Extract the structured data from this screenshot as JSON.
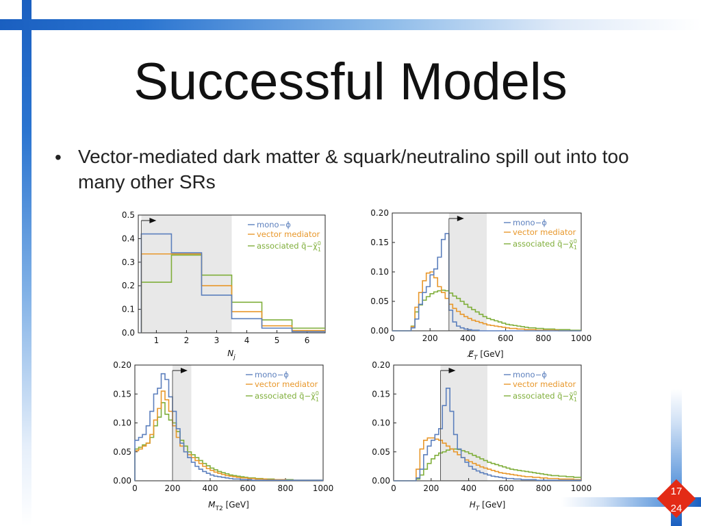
{
  "slide": {
    "title": "Successful Models",
    "bullet": "Vector-mediated dark matter & squark/neutralino spill out into too many other SRs",
    "page_number": "17",
    "page_total": "24"
  },
  "colors": {
    "mono_phi": "#5b7fbd",
    "vector": "#e8972a",
    "associated": "#7fae3a",
    "region": "#e8e8e8"
  },
  "legend": {
    "mono_phi": "mono−ϕ",
    "vector": "vector mediator",
    "associated": "associated q̃−χ̃"
  },
  "chart_data": [
    {
      "type": "line",
      "step": true,
      "xlabel": "N_j",
      "xlim": [
        0.4,
        6.6
      ],
      "ylim": [
        0,
        0.5
      ],
      "xticks": [
        1,
        2,
        3,
        4,
        5,
        6
      ],
      "yticks": [
        "0.0",
        "0.1",
        "0.2",
        "0.3",
        "0.4",
        "0.5"
      ],
      "xtick_labels": [
        "1",
        "2",
        "3",
        "4",
        "5",
        "6"
      ],
      "shaded_region": [
        0.5,
        3.5
      ],
      "cut_marker": 0.5,
      "edges": [
        0.5,
        1.5,
        2.5,
        3.5,
        4.5,
        5.5,
        6.6
      ],
      "series": [
        {
          "name": "mono−ϕ",
          "values": [
            0.42,
            0.34,
            0.16,
            0.06,
            0.02,
            0.005
          ]
        },
        {
          "name": "vector mediator",
          "values": [
            0.335,
            0.335,
            0.2,
            0.09,
            0.03,
            0.01
          ]
        },
        {
          "name": "associated q̃−χ̃",
          "values": [
            0.215,
            0.33,
            0.245,
            0.13,
            0.055,
            0.02
          ]
        }
      ]
    },
    {
      "type": "line",
      "step": true,
      "xlabel": "E_T [GeV]",
      "xlim": [
        0,
        1000
      ],
      "ylim": [
        0,
        0.2
      ],
      "xticks": [
        0,
        200,
        400,
        600,
        800,
        1000
      ],
      "yticks": [
        "0.00",
        "0.05",
        "0.10",
        "0.15",
        "0.20"
      ],
      "xtick_labels": [
        "0",
        "200",
        "400",
        "600",
        "800",
        "1000"
      ],
      "shaded_region": [
        300,
        500
      ],
      "cut_marker": 300,
      "edge_start": 0,
      "bin_width": 20,
      "series": [
        {
          "name": "mono−ϕ",
          "values": [
            0,
            0,
            0,
            0,
            0,
            0.005,
            0.02,
            0.045,
            0.065,
            0.075,
            0.095,
            0.105,
            0.125,
            0.155,
            0.165,
            0.035,
            0.015,
            0.008,
            0.005,
            0.003,
            0.002,
            0.001,
            0.001,
            0,
            0,
            0,
            0,
            0,
            0,
            0,
            0,
            0,
            0,
            0,
            0,
            0,
            0,
            0,
            0,
            0,
            0,
            0,
            0,
            0,
            0,
            0,
            0,
            0,
            0,
            0
          ]
        },
        {
          "name": "vector mediator",
          "values": [
            0,
            0,
            0,
            0,
            0,
            0.007,
            0.04,
            0.065,
            0.085,
            0.098,
            0.1,
            0.09,
            0.075,
            0.065,
            0.055,
            0.045,
            0.038,
            0.033,
            0.028,
            0.024,
            0.021,
            0.018,
            0.016,
            0.014,
            0.012,
            0.01,
            0.009,
            0.008,
            0.007,
            0.006,
            0.005,
            0.004,
            0.004,
            0.003,
            0.003,
            0.002,
            0.002,
            0.002,
            0.001,
            0.001,
            0.001,
            0.001,
            0.001,
            0.001,
            0,
            0,
            0,
            0,
            0,
            0
          ]
        },
        {
          "name": "associated q̃−χ̃",
          "values": [
            0,
            0,
            0,
            0,
            0,
            0.008,
            0.032,
            0.044,
            0.052,
            0.058,
            0.063,
            0.066,
            0.068,
            0.069,
            0.068,
            0.064,
            0.059,
            0.055,
            0.05,
            0.045,
            0.04,
            0.036,
            0.032,
            0.028,
            0.024,
            0.021,
            0.019,
            0.017,
            0.015,
            0.013,
            0.011,
            0.01,
            0.009,
            0.008,
            0.007,
            0.006,
            0.005,
            0.005,
            0.004,
            0.004,
            0.003,
            0.003,
            0.003,
            0.002,
            0.002,
            0.002,
            0.002,
            0.001,
            0.001,
            0.001
          ]
        }
      ]
    },
    {
      "type": "line",
      "step": true,
      "xlabel": "M_T2 [GeV]",
      "xlim": [
        0,
        1000
      ],
      "ylim": [
        0,
        0.2
      ],
      "xticks": [
        0,
        200,
        400,
        600,
        800,
        1000
      ],
      "yticks": [
        "0.00",
        "0.05",
        "0.10",
        "0.15",
        "0.20"
      ],
      "xtick_labels": [
        "0",
        "200",
        "400",
        "600",
        "800",
        "1000"
      ],
      "shaded_region": [
        200,
        300
      ],
      "cut_marker": 200,
      "edge_start": 0,
      "bin_width": 20,
      "series": [
        {
          "name": "mono−ϕ",
          "values": [
            0.07,
            0.075,
            0.08,
            0.095,
            0.12,
            0.15,
            0.16,
            0.185,
            0.175,
            0.145,
            0.12,
            0.09,
            0.065,
            0.05,
            0.04,
            0.032,
            0.025,
            0.02,
            0.016,
            0.013,
            0.01,
            0.008,
            0.007,
            0.006,
            0.005,
            0.004,
            0.003,
            0.003,
            0.002,
            0.002,
            0.002,
            0.001,
            0.001,
            0.001,
            0.001,
            0.001,
            0.001,
            0.001,
            0.001,
            0.001,
            0.001,
            0.001,
            0.001,
            0.001,
            0.001,
            0.001,
            0.001,
            0.001,
            0.001,
            0.001
          ]
        },
        {
          "name": "vector mediator",
          "values": [
            0.052,
            0.055,
            0.06,
            0.065,
            0.08,
            0.105,
            0.125,
            0.155,
            0.14,
            0.12,
            0.095,
            0.075,
            0.06,
            0.05,
            0.045,
            0.04,
            0.035,
            0.03,
            0.025,
            0.021,
            0.018,
            0.015,
            0.013,
            0.011,
            0.009,
            0.008,
            0.007,
            0.006,
            0.005,
            0.005,
            0.004,
            0.004,
            0.003,
            0.003,
            0.003,
            0.002,
            0.002,
            0.002,
            0.002,
            0.002,
            0.001,
            0.001,
            0.001,
            0.001,
            0.001,
            0.001,
            0.001,
            0.001,
            0.001,
            0.001
          ]
        },
        {
          "name": "associated q̃−χ̃",
          "values": [
            0.055,
            0.058,
            0.062,
            0.065,
            0.075,
            0.095,
            0.11,
            0.135,
            0.115,
            0.105,
            0.1,
            0.085,
            0.07,
            0.06,
            0.05,
            0.045,
            0.04,
            0.035,
            0.03,
            0.026,
            0.022,
            0.019,
            0.016,
            0.014,
            0.012,
            0.01,
            0.009,
            0.008,
            0.007,
            0.006,
            0.005,
            0.005,
            0.004,
            0.004,
            0.003,
            0.003,
            0.003,
            0.002,
            0.002,
            0.002,
            0.002,
            0.002,
            0.001,
            0.001,
            0.001,
            0.001,
            0.001,
            0.001,
            0.001,
            0.001
          ]
        }
      ]
    },
    {
      "type": "line",
      "step": true,
      "xlabel": "H_T [GeV]",
      "xlim": [
        0,
        1000
      ],
      "ylim": [
        0,
        0.2
      ],
      "xticks": [
        0,
        200,
        400,
        600,
        800,
        1000
      ],
      "yticks": [
        "0.00",
        "0.05",
        "0.10",
        "0.15",
        "0.20"
      ],
      "xtick_labels": [
        "0",
        "200",
        "400",
        "600",
        "800",
        "1000"
      ],
      "shaded_region": [
        250,
        500
      ],
      "cut_marker": 250,
      "edge_start": 0,
      "bin_width": 20,
      "series": [
        {
          "name": "mono−ϕ",
          "values": [
            0,
            0,
            0,
            0,
            0,
            0,
            0.005,
            0.02,
            0.045,
            0.06,
            0.07,
            0.08,
            0.09,
            0.13,
            0.16,
            0.12,
            0.08,
            0.055,
            0.04,
            0.032,
            0.025,
            0.02,
            0.017,
            0.014,
            0.012,
            0.01,
            0.008,
            0.007,
            0.006,
            0.005,
            0.004,
            0.004,
            0.003,
            0.003,
            0.002,
            0.002,
            0.002,
            0.002,
            0.001,
            0.001,
            0.001,
            0.001,
            0.001,
            0.001,
            0.001,
            0.001,
            0.001,
            0.001,
            0.001,
            0.001
          ]
        },
        {
          "name": "vector mediator",
          "values": [
            0,
            0,
            0,
            0,
            0,
            0,
            0.02,
            0.055,
            0.07,
            0.074,
            0.074,
            0.072,
            0.07,
            0.065,
            0.06,
            0.055,
            0.05,
            0.045,
            0.04,
            0.036,
            0.033,
            0.03,
            0.027,
            0.024,
            0.022,
            0.02,
            0.018,
            0.016,
            0.014,
            0.013,
            0.012,
            0.011,
            0.01,
            0.009,
            0.008,
            0.007,
            0.007,
            0.006,
            0.006,
            0.005,
            0.005,
            0.004,
            0.004,
            0.004,
            0.003,
            0.003,
            0.003,
            0.003,
            0.002,
            0.002
          ]
        },
        {
          "name": "associated q̃−χ̃",
          "values": [
            0,
            0,
            0,
            0,
            0,
            0,
            0.003,
            0.01,
            0.02,
            0.03,
            0.038,
            0.044,
            0.048,
            0.05,
            0.053,
            0.055,
            0.055,
            0.054,
            0.052,
            0.05,
            0.047,
            0.044,
            0.041,
            0.038,
            0.035,
            0.032,
            0.03,
            0.028,
            0.026,
            0.024,
            0.022,
            0.02,
            0.019,
            0.018,
            0.017,
            0.016,
            0.015,
            0.014,
            0.013,
            0.012,
            0.011,
            0.01,
            0.009,
            0.009,
            0.008,
            0.008,
            0.007,
            0.007,
            0.006,
            0.006
          ]
        }
      ]
    }
  ]
}
